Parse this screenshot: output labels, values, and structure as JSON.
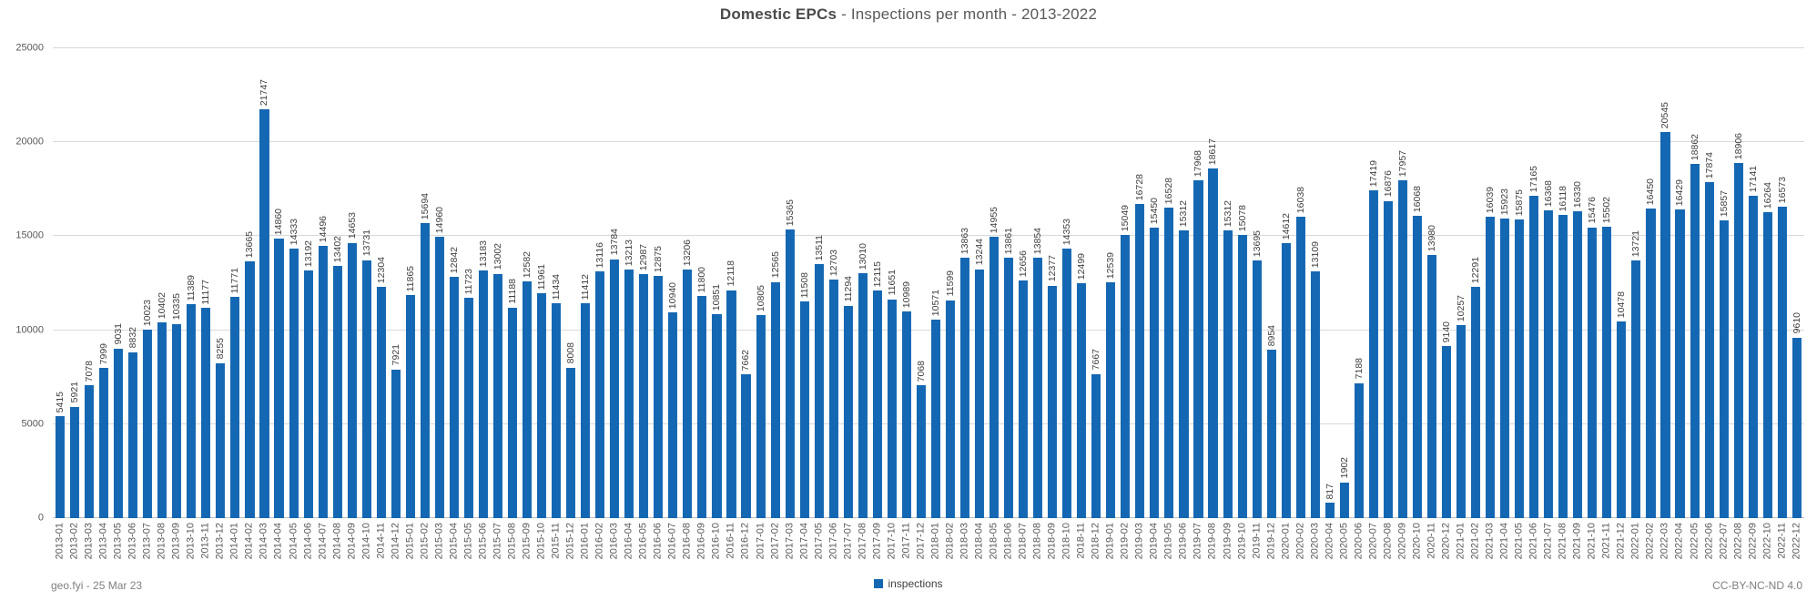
{
  "title": {
    "bold": "Domestic EPCs",
    "rest": " - Inspections per month - 2013-2022"
  },
  "legend": {
    "label": "inspections"
  },
  "footer": {
    "left": "geo.fyi - 25 Mar 23",
    "right": "CC-BY-NC-ND 4.0"
  },
  "chart_data": {
    "type": "bar",
    "title": "Domestic EPCs - Inspections per month - 2013-2022",
    "series_name": "inspections",
    "bar_color": "#1467b2",
    "grid": true,
    "legend_position": "bottom",
    "data_labels": "rotated-90-above-bars",
    "x_tick_rotation": 90,
    "ylim": [
      0,
      25000
    ],
    "yticks": [
      0,
      5000,
      10000,
      15000,
      20000,
      25000
    ],
    "categories": [
      "2013-01",
      "2013-02",
      "2013-03",
      "2013-04",
      "2013-05",
      "2013-06",
      "2013-07",
      "2013-08",
      "2013-09",
      "2013-10",
      "2013-11",
      "2013-12",
      "2014-01",
      "2014-02",
      "2014-03",
      "2014-04",
      "2014-05",
      "2014-06",
      "2014-07",
      "2014-08",
      "2014-09",
      "2014-10",
      "2014-11",
      "2014-12",
      "2015-01",
      "2015-02",
      "2015-03",
      "2015-04",
      "2015-05",
      "2015-06",
      "2015-07",
      "2015-08",
      "2015-09",
      "2015-10",
      "2015-11",
      "2015-12",
      "2016-01",
      "2016-02",
      "2016-03",
      "2016-04",
      "2016-05",
      "2016-06",
      "2016-07",
      "2016-08",
      "2016-09",
      "2016-10",
      "2016-11",
      "2016-12",
      "2017-01",
      "2017-02",
      "2017-03",
      "2017-04",
      "2017-05",
      "2017-06",
      "2017-07",
      "2017-08",
      "2017-09",
      "2017-10",
      "2017-11",
      "2017-12",
      "2018-01",
      "2018-02",
      "2018-03",
      "2018-04",
      "2018-05",
      "2018-06",
      "2018-07",
      "2018-08",
      "2018-09",
      "2018-10",
      "2018-11",
      "2018-12",
      "2019-01",
      "2019-02",
      "2019-03",
      "2019-04",
      "2019-05",
      "2019-06",
      "2019-07",
      "2019-08",
      "2019-09",
      "2019-10",
      "2019-11",
      "2019-12",
      "2020-01",
      "2020-02",
      "2020-03",
      "2020-04",
      "2020-05",
      "2020-06",
      "2020-07",
      "2020-08",
      "2020-09",
      "2020-10",
      "2020-11",
      "2020-12",
      "2021-01",
      "2021-02",
      "2021-03",
      "2021-04",
      "2021-05",
      "2021-06",
      "2021-07",
      "2021-08",
      "2021-09",
      "2021-10",
      "2021-11",
      "2021-12",
      "2022-01",
      "2022-02",
      "2022-03",
      "2022-04",
      "2022-05",
      "2022-06",
      "2022-07",
      "2022-08",
      "2022-09",
      "2022-10",
      "2022-11",
      "2022-12"
    ],
    "values": [
      5415,
      5921,
      7078,
      7999,
      9031,
      8832,
      10023,
      10402,
      10335,
      11389,
      11177,
      8255,
      11771,
      13665,
      21747,
      14860,
      14333,
      13192,
      14496,
      13402,
      14653,
      13731,
      12304,
      7921,
      11865,
      15694,
      14960,
      12842,
      11723,
      13183,
      13002,
      11188,
      12582,
      11961,
      11434,
      8008,
      11412,
      13116,
      13784,
      13213,
      12987,
      12875,
      10940,
      13206,
      11800,
      10851,
      12118,
      7662,
      10805,
      12565,
      15365,
      11508,
      13511,
      12703,
      11294,
      13010,
      12115,
      11651,
      10989,
      7068,
      10571,
      11599,
      13863,
      13244,
      14955,
      13861,
      12656,
      13854,
      12377,
      14353,
      12499,
      7667,
      12539,
      15049,
      16728,
      15450,
      16528,
      15312,
      17968,
      18617,
      15312,
      15078,
      13695,
      8954,
      14612,
      16038,
      13109,
      817,
      1902,
      7188,
      17419,
      16876,
      17957,
      16068,
      13980,
      9140,
      10257,
      12291,
      16039,
      15923,
      15875,
      17165,
      16368,
      16118,
      16330,
      15476,
      15502,
      10478,
      13721,
      16450,
      20545,
      16429,
      18862,
      17874,
      15857,
      18906,
      17141,
      16264,
      16573,
      9610
    ]
  }
}
